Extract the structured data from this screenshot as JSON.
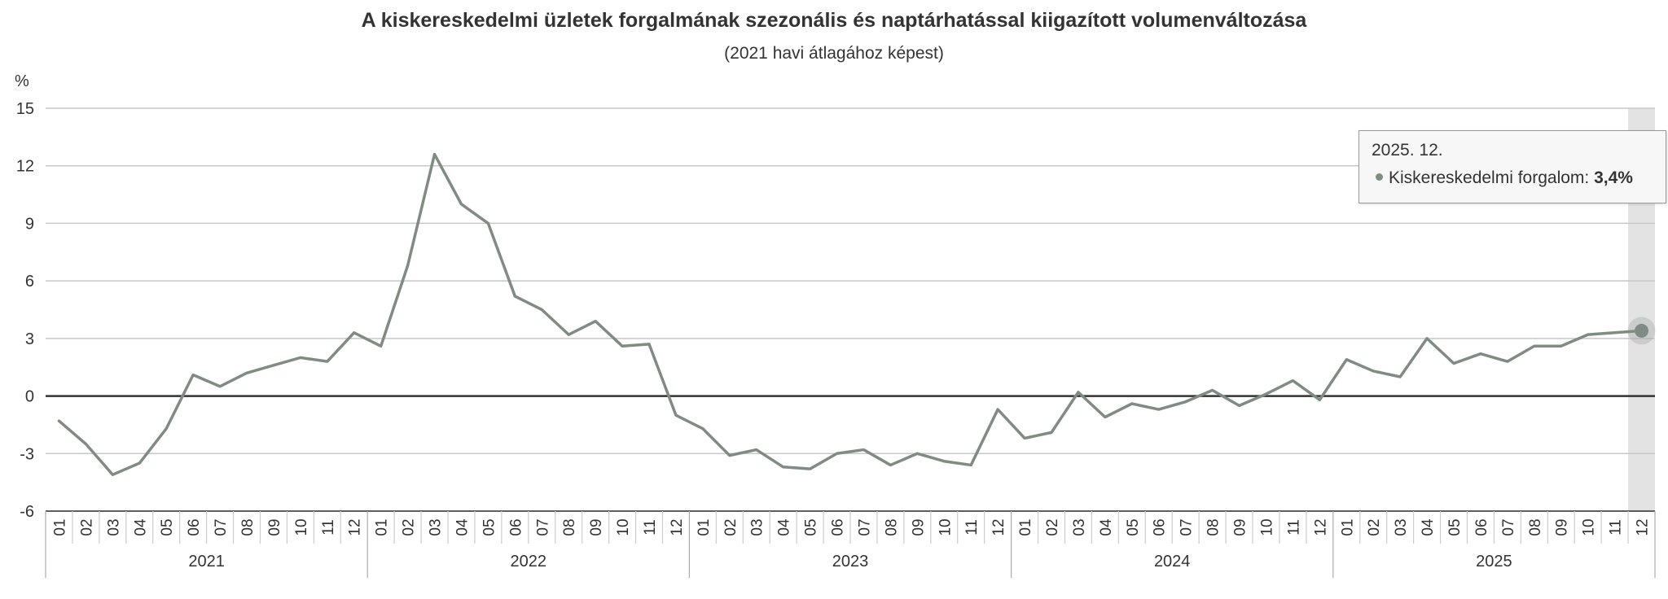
{
  "title": "A kiskereskedelmi üzletek forgalmának szezonális és naptárhatással kiigazított volumenváltozása",
  "subtitle": "(2021 havi átlagához képest)",
  "tooltip": {
    "date": "2025. 12.",
    "series_label": "Kiskereskedelmi forgalom:",
    "value": "3,4%"
  },
  "colors": {
    "series": "#808c83",
    "grid": "#c8c8c8",
    "zero_line": "#333333",
    "highlight_band": "#e3e3e3"
  },
  "chart_data": {
    "type": "line",
    "title": "A kiskereskedelmi üzletek forgalmának szezonális és naptárhatással kiigazított volumenváltozása",
    "subtitle": "(2021 havi átlagához képest)",
    "ylabel": "%",
    "xlabel": "",
    "ylim": [
      -6,
      15
    ],
    "yticks": [
      15,
      12,
      9,
      6,
      3,
      0,
      -3,
      -6
    ],
    "grid": true,
    "legend": "none",
    "highlighted_point": "2025-12",
    "years": [
      "2021",
      "2022",
      "2023",
      "2024",
      "2025"
    ],
    "months": [
      "01",
      "02",
      "03",
      "04",
      "05",
      "06",
      "07",
      "08",
      "09",
      "10",
      "11",
      "12"
    ],
    "series": [
      {
        "name": "Kiskereskedelmi forgalom",
        "values": [
          -1.3,
          -2.5,
          -4.1,
          -3.5,
          -1.7,
          1.1,
          0.5,
          1.2,
          1.6,
          2.0,
          1.8,
          3.3,
          2.6,
          6.8,
          12.6,
          10.0,
          9.0,
          5.2,
          4.5,
          3.2,
          3.9,
          2.6,
          2.7,
          -1.0,
          -1.7,
          -3.1,
          -2.8,
          -3.7,
          -3.8,
          -3.0,
          -2.8,
          -3.6,
          -3.0,
          -3.4,
          -3.6,
          -0.7,
          -2.2,
          -1.9,
          0.2,
          -1.1,
          -0.4,
          -0.7,
          -0.3,
          0.3,
          -0.5,
          0.1,
          0.8,
          -0.2,
          1.9,
          1.3,
          1.0,
          3.0,
          1.7,
          2.2,
          1.8,
          2.6,
          2.6,
          3.2,
          3.3,
          3.4
        ]
      }
    ]
  }
}
